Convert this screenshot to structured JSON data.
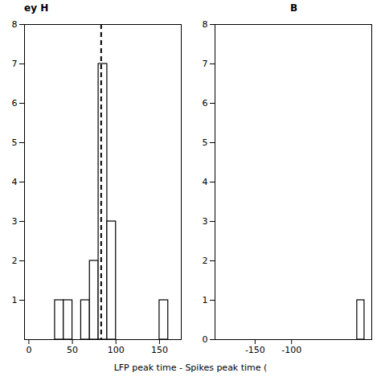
{
  "chart_data": [
    {
      "type": "histogram",
      "title": "ey H",
      "bins": [
        10,
        20,
        30,
        40,
        50,
        60,
        70,
        80,
        90,
        100,
        110,
        120,
        130,
        140,
        150,
        160,
        170
      ],
      "counts": [
        0,
        0,
        1,
        1,
        0,
        1,
        2,
        7,
        3,
        0,
        0,
        0,
        0,
        0,
        1,
        0
      ],
      "color": "#ffffff",
      "vlines": [
        {
          "x": 83,
          "line_style": "dashed",
          "color": "#000000"
        }
      ],
      "xlabel": "LFP peak time - Spikes peak time (",
      "xlim": [
        -5,
        175
      ],
      "ylim": [
        0,
        8
      ],
      "xticks": [
        0,
        50,
        100,
        150
      ],
      "yticks": [
        1,
        2,
        3,
        4,
        5,
        6,
        7,
        8
      ],
      "grid": false
    },
    {
      "type": "histogram",
      "title": "B",
      "bins": [
        -200,
        -190,
        -180,
        -170,
        -160,
        -150,
        -140,
        -130,
        -120,
        -110,
        -100,
        -90,
        -80,
        -70,
        -60,
        -50,
        -40,
        -30,
        -20,
        -10,
        0
      ],
      "counts": [
        0,
        0,
        0,
        0,
        0,
        0,
        0,
        0,
        0,
        0,
        0,
        0,
        0,
        0,
        0,
        0,
        0,
        0,
        0,
        1
      ],
      "color": "#ffffff",
      "xlim": [
        -205,
        10
      ],
      "ylim": [
        0,
        8
      ],
      "xticks": [
        -150,
        -100
      ],
      "yticks": [
        0,
        1,
        2,
        3,
        4,
        5,
        6,
        7,
        8
      ],
      "grid": false
    }
  ]
}
